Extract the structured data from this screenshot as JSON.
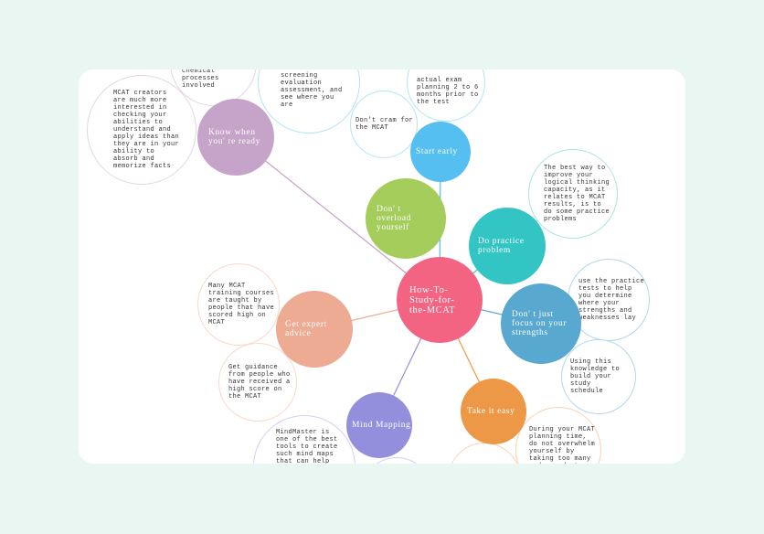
{
  "mindmap": {
    "center": {
      "label": "How-To-\nStudy-for-\nthe-MCAT",
      "color": "#f26482"
    },
    "topics": [
      {
        "label": "Know when\nyou' re ready",
        "color": "#c6a3c8"
      },
      {
        "label": "Don' t\noverload\nyourself",
        "color": "#a5cd5c"
      },
      {
        "label": "Start early",
        "color": "#55bfef"
      },
      {
        "label": "Do practice\nproblem",
        "color": "#33c5c4"
      },
      {
        "label": "Don' t just\nfocus on your\nstrengths",
        "color": "#58a8d0"
      },
      {
        "label": "Get expert\nadvice",
        "color": "#eeab94"
      },
      {
        "label": "Take it easy",
        "color": "#ed9847"
      },
      {
        "label": "Mind Mapping",
        "color": "#948fdc"
      }
    ],
    "notes": [
      {
        "text": "MCAT creators\nare much more\ninterested in\nchecking your\nabilities to\nunderstand and\napply ideas than\nthey are in your\nability to\nabsorb and\nmemorize facts"
      },
      {
        "text": "chemical\nprocesses\ninvolved"
      },
      {
        "text": "take the first\nscreening\nevaluation\nassessment, and\nsee where you\nare"
      },
      {
        "text": "Don't cram for\nthe MCAT"
      },
      {
        "text": "actual exam\nplanning 2 to 6\nmonths prior to\nthe test"
      },
      {
        "text": "The best way to\nimprove your\nlogical thinking\ncapacity, as it\nrelates to MCAT\nresults, is to\ndo some practice\nproblems"
      },
      {
        "text": "use the practice\ntests to help\nyou determine\nwhere your\nstrengths and\nweaknesses lay"
      },
      {
        "text": "Using this\nknowledge to\nbuild your study\nschedule"
      },
      {
        "text": "Many MCAT\ntraining courses\nare taught by\npeople that have\nscored high on\nMCAT"
      },
      {
        "text": "Get guidance\nfrom people who\nhave received a\nhigh score on\nthe MCAT"
      },
      {
        "text": "MindMaster is\none of the best\ntools to create\nsuch mind maps\nthat can help"
      },
      {
        "text": "During your MCAT\nplanning time,\ndo not overwhelm\nyourself by\ntaking too many\nundergraduate"
      }
    ]
  }
}
